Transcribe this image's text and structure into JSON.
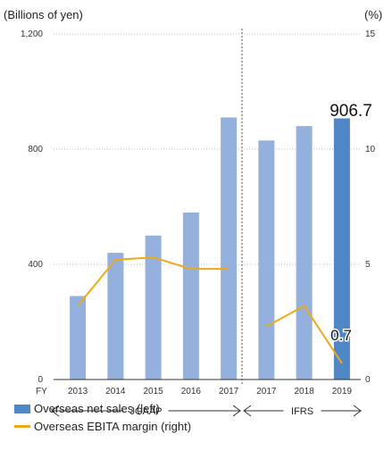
{
  "chart_data": {
    "type": "bar",
    "x_prefix": "FY",
    "categories": [
      "2013",
      "2014",
      "2015",
      "2016",
      "2017",
      "2017",
      "2018",
      "2019"
    ],
    "left_axis": {
      "unit_label": "(Billions of yen)",
      "ylim": [
        0,
        1200
      ],
      "ticks": [
        0,
        400,
        800,
        "1,200"
      ]
    },
    "right_axis": {
      "unit_label": "(%)",
      "ylim": [
        0,
        15
      ],
      "ticks": [
        0,
        5,
        10,
        15
      ]
    },
    "series": [
      {
        "name": "Overseas net sales (left)",
        "type": "bar",
        "axis": "left",
        "values": [
          290,
          440,
          500,
          580,
          910,
          830,
          880,
          906.7
        ],
        "colors": [
          "#94b1de",
          "#94b1de",
          "#94b1de",
          "#94b1de",
          "#94b1de",
          "#94b1de",
          "#94b1de",
          "#4f86c6"
        ]
      },
      {
        "name": "Overseas EBITA margin (right)",
        "type": "line",
        "axis": "right",
        "color": "#f0a81c",
        "segments": [
          {
            "from": 0,
            "values": [
              3.2,
              5.2,
              5.3,
              4.8,
              4.8
            ]
          },
          {
            "from": 5,
            "values": [
              2.3,
              3.2,
              0.7
            ]
          }
        ]
      }
    ],
    "annotations": {
      "last_bar_value": "906.7",
      "last_margin_value": "0.7"
    },
    "periods": [
      {
        "label": "JGAAP",
        "from": 0,
        "to": 4
      },
      {
        "label": "IFRS",
        "from": 5,
        "to": 7
      }
    ],
    "grid": "dotted-horizontal",
    "legend_position": "bottom-left"
  }
}
